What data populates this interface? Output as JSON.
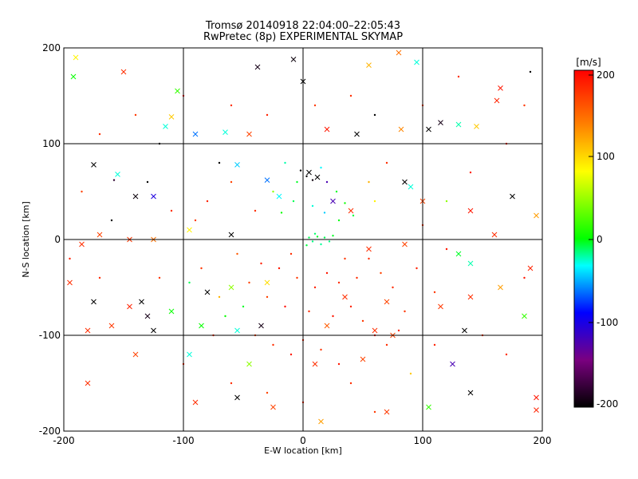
{
  "chart_data": {
    "type": "scatter",
    "title": "Tromsø 20140918 22:04:00–22:05:43",
    "subtitle": "RwPretec (8p) EXPERIMENTAL SKYMAP",
    "xlabel": "E-W location [km]",
    "ylabel": "N-S location [km]",
    "xlim": [
      -200,
      200
    ],
    "ylim": [
      -200,
      200
    ],
    "x_ticks": [
      "-200",
      "-100",
      "0",
      "100",
      "200"
    ],
    "y_ticks": [
      "-200",
      "-100",
      "0",
      "100",
      "200"
    ],
    "grid": true,
    "marker_types": [
      "cross",
      "dot"
    ],
    "colorbar": {
      "label": "[m/s]",
      "range": [
        -200,
        200
      ],
      "ticks": [
        "200",
        "100",
        "0",
        "-100",
        "-200"
      ],
      "colormap": [
        "#000000",
        "#7a0080",
        "#0000ff",
        "#00ffff",
        "#00ff00",
        "#ffff00",
        "#ff8000",
        "#ff0000"
      ]
    },
    "series": [
      {
        "marker": "cross",
        "points": [
          {
            "x": -190,
            "y": 190,
            "v": 90
          },
          {
            "x": -192,
            "y": 170,
            "v": 30
          },
          {
            "x": -150,
            "y": 175,
            "v": 180
          },
          {
            "x": -105,
            "y": 155,
            "v": 40
          },
          {
            "x": -38,
            "y": 180,
            "v": -190
          },
          {
            "x": -8,
            "y": 188,
            "v": -195
          },
          {
            "x": 0,
            "y": 165,
            "v": -200
          },
          {
            "x": 80,
            "y": 195,
            "v": 150
          },
          {
            "x": 95,
            "y": 185,
            "v": -20
          },
          {
            "x": 55,
            "y": 182,
            "v": 120
          },
          {
            "x": 165,
            "y": 158,
            "v": 190
          },
          {
            "x": 162,
            "y": 145,
            "v": 185
          },
          {
            "x": -110,
            "y": 128,
            "v": 110
          },
          {
            "x": -115,
            "y": 118,
            "v": -20
          },
          {
            "x": -90,
            "y": 110,
            "v": -60
          },
          {
            "x": -65,
            "y": 112,
            "v": -20
          },
          {
            "x": -45,
            "y": 110,
            "v": 170
          },
          {
            "x": 20,
            "y": 115,
            "v": 190
          },
          {
            "x": 45,
            "y": 110,
            "v": -200
          },
          {
            "x": 82,
            "y": 115,
            "v": 140
          },
          {
            "x": 105,
            "y": 115,
            "v": -200
          },
          {
            "x": 115,
            "y": 122,
            "v": -190
          },
          {
            "x": 130,
            "y": 120,
            "v": -10
          },
          {
            "x": 145,
            "y": 118,
            "v": 110
          },
          {
            "x": -175,
            "y": 78,
            "v": -200
          },
          {
            "x": -155,
            "y": 68,
            "v": -20
          },
          {
            "x": -140,
            "y": 45,
            "v": -195
          },
          {
            "x": -125,
            "y": 45,
            "v": -100
          },
          {
            "x": -55,
            "y": 78,
            "v": -40
          },
          {
            "x": -30,
            "y": 62,
            "v": -60
          },
          {
            "x": -20,
            "y": 45,
            "v": -30
          },
          {
            "x": 5,
            "y": 70,
            "v": -200
          },
          {
            "x": 12,
            "y": 65,
            "v": -200
          },
          {
            "x": 25,
            "y": 40,
            "v": -120
          },
          {
            "x": 40,
            "y": 30,
            "v": 180
          },
          {
            "x": 85,
            "y": 60,
            "v": -200
          },
          {
            "x": 90,
            "y": 55,
            "v": -20
          },
          {
            "x": 100,
            "y": 40,
            "v": 170
          },
          {
            "x": 140,
            "y": 30,
            "v": 190
          },
          {
            "x": 175,
            "y": 45,
            "v": -200
          },
          {
            "x": 160,
            "y": 5,
            "v": 180
          },
          {
            "x": 195,
            "y": 25,
            "v": 130
          },
          {
            "x": -185,
            "y": -5,
            "v": 180
          },
          {
            "x": -170,
            "y": 5,
            "v": 170
          },
          {
            "x": -145,
            "y": 0,
            "v": 175
          },
          {
            "x": -125,
            "y": 0,
            "v": 150
          },
          {
            "x": -95,
            "y": 10,
            "v": 90
          },
          {
            "x": -60,
            "y": 5,
            "v": -200
          },
          {
            "x": 55,
            "y": -10,
            "v": 180
          },
          {
            "x": 85,
            "y": -5,
            "v": 170
          },
          {
            "x": 130,
            "y": -15,
            "v": 20
          },
          {
            "x": 140,
            "y": -25,
            "v": -10
          },
          {
            "x": 165,
            "y": -50,
            "v": 130
          },
          {
            "x": 190,
            "y": -30,
            "v": 185
          },
          {
            "x": -195,
            "y": -45,
            "v": 180
          },
          {
            "x": -175,
            "y": -65,
            "v": -200
          },
          {
            "x": -135,
            "y": -65,
            "v": -200
          },
          {
            "x": -130,
            "y": -80,
            "v": -190
          },
          {
            "x": -145,
            "y": -70,
            "v": 185
          },
          {
            "x": -110,
            "y": -75,
            "v": 30
          },
          {
            "x": -80,
            "y": -55,
            "v": -200
          },
          {
            "x": -60,
            "y": -50,
            "v": 60
          },
          {
            "x": -30,
            "y": -45,
            "v": 100
          },
          {
            "x": 35,
            "y": -60,
            "v": 180
          },
          {
            "x": 70,
            "y": -65,
            "v": 170
          },
          {
            "x": 115,
            "y": -70,
            "v": 175
          },
          {
            "x": 140,
            "y": -60,
            "v": 180
          },
          {
            "x": 185,
            "y": -80,
            "v": 40
          },
          {
            "x": -180,
            "y": -95,
            "v": 180
          },
          {
            "x": -160,
            "y": -90,
            "v": 175
          },
          {
            "x": -125,
            "y": -95,
            "v": -200
          },
          {
            "x": -85,
            "y": -90,
            "v": 30
          },
          {
            "x": -55,
            "y": -95,
            "v": -20
          },
          {
            "x": -35,
            "y": -90,
            "v": -190
          },
          {
            "x": 20,
            "y": -90,
            "v": 160
          },
          {
            "x": 60,
            "y": -95,
            "v": 180
          },
          {
            "x": 75,
            "y": -100,
            "v": 170
          },
          {
            "x": 135,
            "y": -95,
            "v": -200
          },
          {
            "x": -140,
            "y": -120,
            "v": 170
          },
          {
            "x": -95,
            "y": -120,
            "v": -20
          },
          {
            "x": -45,
            "y": -130,
            "v": 60
          },
          {
            "x": 10,
            "y": -130,
            "v": 180
          },
          {
            "x": 50,
            "y": -125,
            "v": 170
          },
          {
            "x": 125,
            "y": -130,
            "v": -120
          },
          {
            "x": -180,
            "y": -150,
            "v": 180
          },
          {
            "x": -90,
            "y": -170,
            "v": 180
          },
          {
            "x": -55,
            "y": -165,
            "v": -200
          },
          {
            "x": -25,
            "y": -175,
            "v": 170
          },
          {
            "x": 15,
            "y": -190,
            "v": 130
          },
          {
            "x": 70,
            "y": -180,
            "v": 175
          },
          {
            "x": 105,
            "y": -175,
            "v": 40
          },
          {
            "x": 140,
            "y": -160,
            "v": -200
          },
          {
            "x": 195,
            "y": -165,
            "v": 190
          },
          {
            "x": 195,
            "y": -178,
            "v": 185
          }
        ]
      },
      {
        "marker": "dot",
        "points": [
          {
            "x": -158,
            "y": 62,
            "v": -180
          },
          {
            "x": -120,
            "y": 100,
            "v": -200
          },
          {
            "x": -100,
            "y": 150,
            "v": 200
          },
          {
            "x": -70,
            "y": 80,
            "v": -200
          },
          {
            "x": -40,
            "y": 30,
            "v": 180
          },
          {
            "x": -25,
            "y": 50,
            "v": 60
          },
          {
            "x": -15,
            "y": 80,
            "v": -10
          },
          {
            "x": -5,
            "y": 60,
            "v": 20
          },
          {
            "x": -2,
            "y": 72,
            "v": -200
          },
          {
            "x": 3,
            "y": 66,
            "v": -200
          },
          {
            "x": 8,
            "y": 62,
            "v": -195
          },
          {
            "x": 15,
            "y": 75,
            "v": -30
          },
          {
            "x": 20,
            "y": 60,
            "v": -120
          },
          {
            "x": 28,
            "y": 50,
            "v": 20
          },
          {
            "x": 35,
            "y": 38,
            "v": 30
          },
          {
            "x": 42,
            "y": 25,
            "v": 15
          },
          {
            "x": 30,
            "y": 20,
            "v": 25
          },
          {
            "x": 18,
            "y": 28,
            "v": -40
          },
          {
            "x": 8,
            "y": 35,
            "v": -20
          },
          {
            "x": -8,
            "y": 40,
            "v": 10
          },
          {
            "x": -18,
            "y": 28,
            "v": 30
          },
          {
            "x": 5,
            "y": 2,
            "v": 10
          },
          {
            "x": 8,
            "y": -2,
            "v": 0
          },
          {
            "x": 12,
            "y": 3,
            "v": 20
          },
          {
            "x": 15,
            "y": -5,
            "v": -5
          },
          {
            "x": 18,
            "y": 2,
            "v": 10
          },
          {
            "x": 10,
            "y": 6,
            "v": 5
          },
          {
            "x": 22,
            "y": -2,
            "v": 0
          },
          {
            "x": 3,
            "y": -6,
            "v": 15
          },
          {
            "x": 25,
            "y": 4,
            "v": 20
          },
          {
            "x": -10,
            "y": -15,
            "v": 180
          },
          {
            "x": -20,
            "y": -30,
            "v": 190
          },
          {
            "x": -5,
            "y": -40,
            "v": 175
          },
          {
            "x": 10,
            "y": -50,
            "v": 185
          },
          {
            "x": 20,
            "y": -35,
            "v": 190
          },
          {
            "x": 30,
            "y": -45,
            "v": 180
          },
          {
            "x": -30,
            "y": -60,
            "v": 170
          },
          {
            "x": -15,
            "y": -70,
            "v": 195
          },
          {
            "x": 5,
            "y": -75,
            "v": 180
          },
          {
            "x": 25,
            "y": -80,
            "v": 190
          },
          {
            "x": 40,
            "y": -70,
            "v": 185
          },
          {
            "x": 50,
            "y": -85,
            "v": 175
          },
          {
            "x": 60,
            "y": -100,
            "v": 190
          },
          {
            "x": 70,
            "y": -110,
            "v": 180
          },
          {
            "x": 80,
            "y": -95,
            "v": 185
          },
          {
            "x": -40,
            "y": -100,
            "v": 170
          },
          {
            "x": -25,
            "y": -110,
            "v": 180
          },
          {
            "x": -10,
            "y": -120,
            "v": 190
          },
          {
            "x": 0,
            "y": -105,
            "v": 185
          },
          {
            "x": 15,
            "y": -115,
            "v": 175
          },
          {
            "x": 30,
            "y": -130,
            "v": 190
          },
          {
            "x": -50,
            "y": -70,
            "v": 20
          },
          {
            "x": -70,
            "y": -60,
            "v": 120
          },
          {
            "x": -65,
            "y": -80,
            "v": 30
          },
          {
            "x": -85,
            "y": -30,
            "v": 175
          },
          {
            "x": -95,
            "y": -45,
            "v": 10
          },
          {
            "x": -55,
            "y": -15,
            "v": 160
          },
          {
            "x": 55,
            "y": -20,
            "v": 180
          },
          {
            "x": 65,
            "y": -35,
            "v": 170
          },
          {
            "x": 75,
            "y": -50,
            "v": 180
          },
          {
            "x": 95,
            "y": -30,
            "v": 185
          },
          {
            "x": 110,
            "y": -55,
            "v": 175
          },
          {
            "x": 120,
            "y": -10,
            "v": 190
          },
          {
            "x": 100,
            "y": 15,
            "v": 180
          },
          {
            "x": 120,
            "y": 40,
            "v": 60
          },
          {
            "x": 140,
            "y": 70,
            "v": 185
          },
          {
            "x": 70,
            "y": 80,
            "v": 180
          },
          {
            "x": 55,
            "y": 60,
            "v": 120
          },
          {
            "x": 60,
            "y": 40,
            "v": 90
          },
          {
            "x": -60,
            "y": 60,
            "v": 170
          },
          {
            "x": -80,
            "y": 40,
            "v": 185
          },
          {
            "x": -90,
            "y": 20,
            "v": 175
          },
          {
            "x": -110,
            "y": 30,
            "v": 180
          },
          {
            "x": -130,
            "y": 60,
            "v": -200
          },
          {
            "x": -160,
            "y": 20,
            "v": -200
          },
          {
            "x": -185,
            "y": 50,
            "v": 170
          },
          {
            "x": -195,
            "y": -20,
            "v": 185
          },
          {
            "x": -170,
            "y": -40,
            "v": 180
          },
          {
            "x": -120,
            "y": -40,
            "v": 175
          },
          {
            "x": -100,
            "y": -130,
            "v": 185
          },
          {
            "x": -60,
            "y": -150,
            "v": 180
          },
          {
            "x": -30,
            "y": -160,
            "v": 170
          },
          {
            "x": 0,
            "y": -170,
            "v": 185
          },
          {
            "x": 40,
            "y": -150,
            "v": 180
          },
          {
            "x": 60,
            "y": -180,
            "v": 175
          },
          {
            "x": 90,
            "y": -140,
            "v": 110
          },
          {
            "x": 110,
            "y": -110,
            "v": 185
          },
          {
            "x": 150,
            "y": -100,
            "v": 175
          },
          {
            "x": 170,
            "y": -120,
            "v": 180
          },
          {
            "x": 185,
            "y": -40,
            "v": 190
          },
          {
            "x": 170,
            "y": 100,
            "v": 185
          },
          {
            "x": 185,
            "y": 140,
            "v": 175
          },
          {
            "x": 190,
            "y": 175,
            "v": -200
          },
          {
            "x": 130,
            "y": 170,
            "v": 180
          },
          {
            "x": 100,
            "y": 140,
            "v": 175
          },
          {
            "x": 60,
            "y": 130,
            "v": -200
          },
          {
            "x": 40,
            "y": 150,
            "v": 180
          },
          {
            "x": 10,
            "y": 140,
            "v": 175
          },
          {
            "x": -30,
            "y": 130,
            "v": 185
          },
          {
            "x": -60,
            "y": 140,
            "v": 180
          },
          {
            "x": -140,
            "y": 130,
            "v": 175
          },
          {
            "x": -170,
            "y": 110,
            "v": 180
          },
          {
            "x": 45,
            "y": -40,
            "v": 180
          },
          {
            "x": 35,
            "y": -20,
            "v": 175
          },
          {
            "x": -35,
            "y": -25,
            "v": 185
          },
          {
            "x": -45,
            "y": -45,
            "v": 170
          },
          {
            "x": 85,
            "y": -75,
            "v": 175
          },
          {
            "x": -75,
            "y": -100,
            "v": 180
          }
        ]
      }
    ]
  }
}
